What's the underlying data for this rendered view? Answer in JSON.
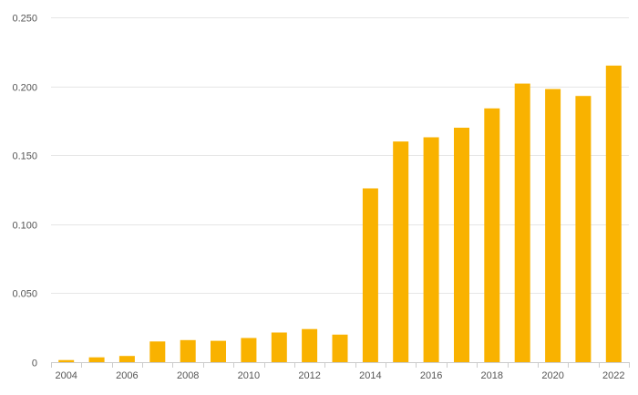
{
  "chart_data": {
    "type": "bar",
    "title": "",
    "xlabel": "",
    "ylabel": "",
    "categories": [
      "2004",
      "2005",
      "2006",
      "2007",
      "2008",
      "2009",
      "2010",
      "2011",
      "2012",
      "2013",
      "2014",
      "2015",
      "2016",
      "2017",
      "2018",
      "2019",
      "2020",
      "2021",
      "2022"
    ],
    "values": [
      0.0015,
      0.0035,
      0.0045,
      0.015,
      0.016,
      0.0155,
      0.0175,
      0.0215,
      0.024,
      0.02,
      0.126,
      0.16,
      0.163,
      0.17,
      0.184,
      0.202,
      0.198,
      0.193,
      0.215
    ],
    "x_tick_labels": [
      "2004",
      "2006",
      "2008",
      "2010",
      "2012",
      "2014",
      "2016",
      "2018",
      "2020",
      "2022"
    ],
    "y_ticks": [
      0,
      0.05,
      0.1,
      0.15,
      0.2,
      0.25
    ],
    "y_tick_labels": [
      "0",
      "0.050",
      "0.100",
      "0.150",
      "0.200",
      "0.250"
    ],
    "ylim": [
      0,
      0.25
    ],
    "grid": true,
    "legend": "none",
    "bar_color": "#F9B200"
  }
}
